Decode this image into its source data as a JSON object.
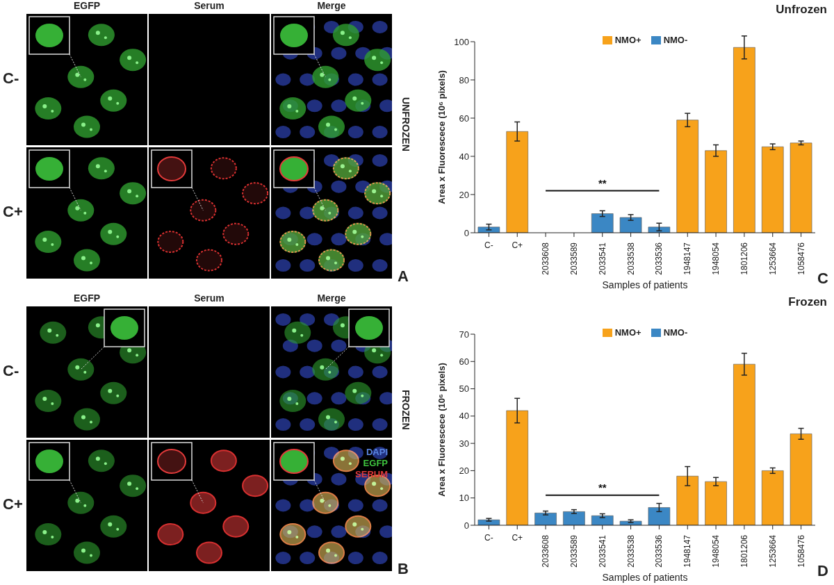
{
  "image_panels": [
    {
      "label": "A",
      "condition": "UNFROZEN",
      "columns": [
        "EGFP",
        "Serum",
        "Merge"
      ],
      "rows": [
        "C-",
        "C+"
      ]
    },
    {
      "label": "B",
      "condition": "FROZEN",
      "columns": [
        "EGFP",
        "Serum",
        "Merge"
      ],
      "rows": [
        "C-",
        "C+"
      ],
      "channel_legend": [
        {
          "name": "DAPI",
          "color": "#5a86e0"
        },
        {
          "name": "EGFP",
          "color": "#3ec43e"
        },
        {
          "name": "SERUM",
          "color": "#e23a3a"
        }
      ]
    }
  ],
  "chart_data": [
    {
      "panel": "C",
      "type": "bar",
      "title": "Unfrozen",
      "x_label": "Samples of patients",
      "y_label": "Area x Fluorescece (10⁶ pixels)",
      "categories": [
        "C-",
        "C+",
        "2033608",
        "2033589",
        "2033541",
        "2033538",
        "2033536",
        "1948147",
        "1948054",
        "1801206",
        "1253664",
        "1058476"
      ],
      "series": [
        {
          "name": "NMO+",
          "color": "#f7a21b",
          "values": [
            null,
            53,
            null,
            null,
            null,
            null,
            null,
            59,
            43,
            97,
            45,
            47
          ],
          "errors": [
            null,
            5,
            null,
            null,
            null,
            null,
            null,
            3.5,
            3,
            6,
            1.5,
            1
          ]
        },
        {
          "name": "NMO-",
          "color": "#3b87c4",
          "values": [
            3,
            null,
            0,
            0,
            10,
            8,
            3,
            null,
            null,
            null,
            null,
            null
          ],
          "errors": [
            1.5,
            null,
            0,
            0,
            1.5,
            1.5,
            2,
            null,
            null,
            null,
            null,
            null
          ]
        }
      ],
      "ylim": [
        0,
        100
      ],
      "yticks": [
        0,
        20,
        40,
        60,
        80,
        100
      ],
      "legend": "top",
      "annotations": [
        {
          "text": "**",
          "from": "2033608",
          "to": "2033536",
          "y": 22
        }
      ]
    },
    {
      "panel": "D",
      "type": "bar",
      "title": "Frozen",
      "x_label": "Samples of patients",
      "y_label": "Area x Fluorescece (10⁶ pixels)",
      "categories": [
        "C-",
        "C+",
        "2033608",
        "2033589",
        "2033541",
        "2033538",
        "2033536",
        "1948147",
        "1948054",
        "1801206",
        "1253664",
        "1058476"
      ],
      "series": [
        {
          "name": "NMO+",
          "color": "#f7a21b",
          "values": [
            null,
            42,
            null,
            null,
            null,
            null,
            null,
            18,
            16,
            59,
            20,
            33.5
          ],
          "errors": [
            null,
            4.5,
            null,
            null,
            null,
            null,
            null,
            3.5,
            1.5,
            4,
            1,
            2
          ]
        },
        {
          "name": "NMO-",
          "color": "#3b87c4",
          "values": [
            2,
            null,
            4.5,
            5,
            3.5,
            1.5,
            6.5,
            null,
            null,
            null,
            null,
            null
          ],
          "errors": [
            0.5,
            null,
            0.7,
            0.7,
            0.7,
            0.5,
            1.5,
            null,
            null,
            null,
            null,
            null
          ]
        }
      ],
      "ylim": [
        0,
        70
      ],
      "yticks": [
        0,
        10,
        20,
        30,
        40,
        50,
        60,
        70
      ],
      "legend": "top",
      "annotations": [
        {
          "text": "**",
          "from": "2033608",
          "to": "2033536",
          "y": 11
        }
      ]
    }
  ]
}
